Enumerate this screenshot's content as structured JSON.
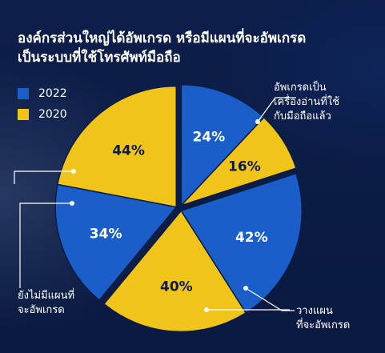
{
  "title_line1": "องค์กรส่วนใหญ่ได้อัพเกรด หรือมีแผนที่จะอัพเกรด",
  "title_line2": "เป็นระบบที่ใช้โทรศัพท์มือถือ",
  "colors": {
    "blue": "#1a5fc9",
    "yellow": "#f0c419",
    "background": "#0b1c44"
  },
  "chart_data": {
    "type": "pie",
    "series": [
      {
        "name": "2022",
        "color": "#1a5fc9"
      },
      {
        "name": "2020",
        "color": "#f0c419"
      }
    ],
    "categories": [
      "อัพเกรดเป็นเครื่องอ่านที่ใช้กับมือถือแล้ว",
      "วางแผนที่จะอัพเกรด",
      "ยังไม่มีแผนที่จะอัพเกรด"
    ],
    "slices": [
      {
        "category": "อัพเกรดเป็นเครื่องอ่านที่ใช้กับมือถือแล้ว",
        "series": "2022",
        "value": 24,
        "label": "24%"
      },
      {
        "category": "อัพเกรดเป็นเครื่องอ่านที่ใช้กับมือถือแล้ว",
        "series": "2020",
        "value": 16,
        "label": "16%"
      },
      {
        "category": "วางแผนที่จะอัพเกรด",
        "series": "2022",
        "value": 42,
        "label": "42%"
      },
      {
        "category": "วางแผนที่จะอัพเกรด",
        "series": "2020",
        "value": 40,
        "label": "40%"
      },
      {
        "category": "ยังไม่มีแผนที่จะอัพเกรด",
        "series": "2022",
        "value": 34,
        "label": "34%"
      },
      {
        "category": "ยังไม่มีแผนที่จะอัพเกรด",
        "series": "2020",
        "value": 44,
        "label": "44%"
      }
    ],
    "annotations": [
      {
        "lines": [
          "อัพเกรดเป็น",
          "เครื่องอ่านที่ใช้",
          "กับมือถือแล้ว"
        ]
      },
      {
        "lines": [
          "วางแผน",
          "ที่จะอัพเกรด"
        ]
      },
      {
        "lines": [
          "ยังไม่มีแผนที่",
          "จะอัพเกรด"
        ]
      }
    ]
  }
}
